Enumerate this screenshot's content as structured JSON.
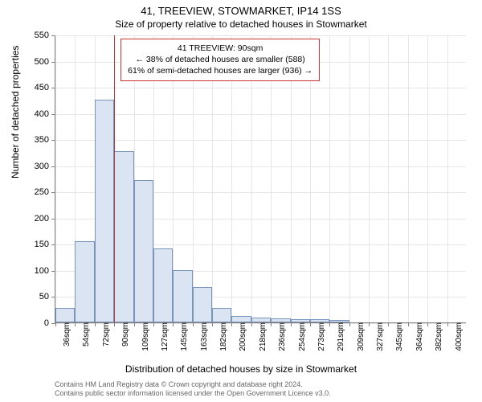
{
  "chart": {
    "type": "histogram",
    "title": "41, TREEVIEW, STOWMARKET, IP14 1SS",
    "subtitle": "Size of property relative to detached houses in Stowmarket",
    "y_axis_label": "Number of detached properties",
    "x_axis_label": "Distribution of detached houses by size in Stowmarket",
    "ylim": [
      0,
      550
    ],
    "y_ticks": [
      0,
      50,
      100,
      150,
      200,
      250,
      300,
      350,
      400,
      450,
      500,
      550
    ],
    "x_tick_labels": [
      "36sqm",
      "54sqm",
      "72sqm",
      "90sqm",
      "109sqm",
      "127sqm",
      "145sqm",
      "163sqm",
      "182sqm",
      "200sqm",
      "218sqm",
      "236sqm",
      "254sqm",
      "273sqm",
      "291sqm",
      "309sqm",
      "327sqm",
      "345sqm",
      "364sqm",
      "382sqm",
      "400sqm"
    ],
    "reference_x_index": 3,
    "bars": [
      28,
      155,
      425,
      328,
      272,
      142,
      100,
      68,
      28,
      12,
      10,
      8,
      6,
      6,
      4,
      0,
      0,
      0,
      0,
      0,
      0
    ],
    "bar_fill": "#dbe4f2",
    "bar_border": "#7a93b8",
    "grid_color": "#e6e6e6",
    "axis_color": "#808080",
    "reference_color": "#cc3333",
    "background": "#ffffff",
    "annotation": {
      "line1": "41 TREEVIEW: 90sqm",
      "line2": "← 38% of detached houses are smaller (588)",
      "line3": "61% of semi-detached houses are larger (936) →"
    },
    "footer": {
      "line1": "Contains HM Land Registry data © Crown copyright and database right 2024.",
      "line2": "Contains public sector information licensed under the Open Government Licence v3.0."
    },
    "title_fontsize": 13,
    "subtitle_fontsize": 12,
    "axis_label_fontsize": 12,
    "tick_fontsize": 11
  }
}
